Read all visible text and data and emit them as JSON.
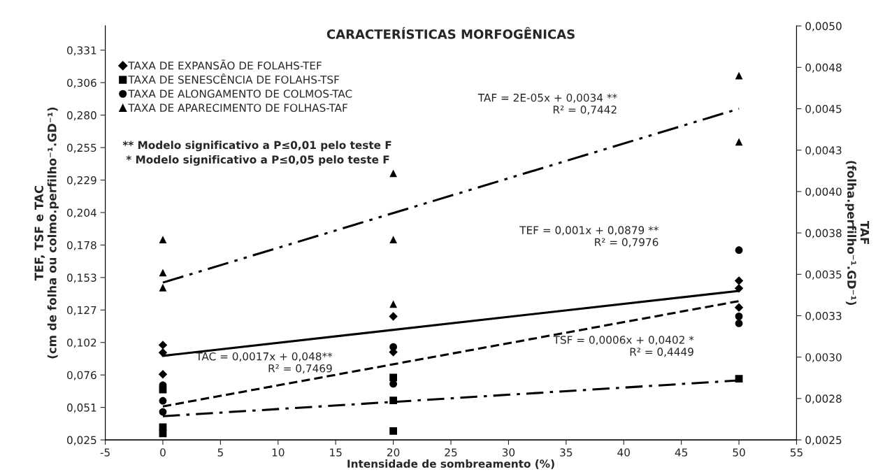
{
  "chart_data": {
    "type": "scatter",
    "title": "CARACTERÍSTICAS MORFOGÊNICAS",
    "xlabel": "Intensidade de sombreamento (%)",
    "ylabel": "TEF, TSF e TAC\n(cm de folha ou colmo.perfilho⁻¹.GD⁻¹)",
    "y2label": "TAF\n(folha.perfilho⁻¹.GD⁻¹)",
    "xlim": [
      -5,
      55
    ],
    "xticks": [
      -5,
      0,
      5,
      10,
      15,
      20,
      25,
      30,
      35,
      40,
      45,
      50,
      55
    ],
    "ylim": [
      0.025,
      0.35
    ],
    "yticks": [
      {
        "value": 0.025,
        "label": "0,025"
      },
      {
        "value": 0.0505,
        "label": "0,051"
      },
      {
        "value": 0.076,
        "label": "0,076"
      },
      {
        "value": 0.1015,
        "label": "0,102"
      },
      {
        "value": 0.127,
        "label": "0,127"
      },
      {
        "value": 0.1525,
        "label": "0,153"
      },
      {
        "value": 0.178,
        "label": "0,178"
      },
      {
        "value": 0.2035,
        "label": "0,204"
      },
      {
        "value": 0.229,
        "label": "0,229"
      },
      {
        "value": 0.2545,
        "label": "0,255"
      },
      {
        "value": 0.28,
        "label": "0,280"
      },
      {
        "value": 0.3055,
        "label": "0,306"
      },
      {
        "value": 0.331,
        "label": "0,331"
      }
    ],
    "y2lim": [
      0.0025,
      0.005
    ],
    "y2ticks": [
      {
        "value": 0.0025,
        "label": "0,0025"
      },
      {
        "value": 0.00275,
        "label": "0,0028"
      },
      {
        "value": 0.003,
        "label": "0,0030"
      },
      {
        "value": 0.00325,
        "label": "0,0033"
      },
      {
        "value": 0.0035,
        "label": "0,0035"
      },
      {
        "value": 0.00375,
        "label": "0,0038"
      },
      {
        "value": 0.004,
        "label": "0,0040"
      },
      {
        "value": 0.00425,
        "label": "0,0043"
      },
      {
        "value": 0.0045,
        "label": "0,0045"
      },
      {
        "value": 0.00475,
        "label": "0,0048"
      },
      {
        "value": 0.005,
        "label": "0,0050"
      }
    ],
    "grid": false,
    "legend": "top left",
    "series": [
      {
        "name": "TAXA DE EXPANSÃO DE FOLAHS-TEF",
        "marker": "diamond",
        "color": "#000000",
        "x": [
          0,
          0,
          0,
          20,
          20,
          50,
          50,
          50
        ],
        "values": [
          0.0995,
          0.0935,
          0.0765,
          0.122,
          0.094,
          0.15,
          0.144,
          0.129
        ]
      },
      {
        "name": "TAXA DE SENESCÊNCIA DE FOLAHS-TSF",
        "marker": "square",
        "color": "#000000",
        "x": [
          0,
          0,
          0,
          20,
          20,
          20,
          50
        ],
        "values": [
          0.0645,
          0.035,
          0.03,
          0.074,
          0.056,
          0.032,
          0.073
        ]
      },
      {
        "name": "TAXA DE ALONGAMENTO DE COLMOS-TAC",
        "marker": "circle",
        "color": "#000000",
        "x": [
          0,
          0,
          0,
          20,
          20,
          50,
          50,
          50
        ],
        "values": [
          0.068,
          0.0557,
          0.047,
          0.098,
          0.069,
          0.174,
          0.122,
          0.1165
        ]
      },
      {
        "name": "TAXA DE APARECIMENTO DE FOLHAS-TAF",
        "marker": "triangle",
        "color": "#000000",
        "axis": "y2",
        "x": [
          0,
          0,
          0,
          20,
          20,
          20,
          50,
          50
        ],
        "values": [
          0.00371,
          0.00351,
          0.00342,
          0.00411,
          0.00371,
          0.00332,
          0.0047,
          0.0043
        ]
      },
      {
        "type": "line",
        "line_style": "solid",
        "color": "#000000",
        "x": [
          0,
          50
        ],
        "values": [
          0.091,
          0.142
        ]
      },
      {
        "type": "line",
        "line_style": "dashdot",
        "color": "#000000",
        "x": [
          0,
          50
        ],
        "values": [
          0.0436,
          0.0717
        ]
      },
      {
        "type": "line",
        "line_style": "dashed",
        "color": "#000000",
        "x": [
          0,
          50
        ],
        "values": [
          0.0513,
          0.134
        ]
      },
      {
        "type": "line",
        "line_style": "dashdotdot",
        "color": "#000000",
        "axis": "y2",
        "x": [
          0,
          50
        ],
        "values": [
          0.00345,
          0.0045
        ]
      }
    ],
    "annotations": [
      "** Modelo significativo a P≤0,01 pelo teste F",
      "* Modelo significativo a P≤0,05 pelo teste F",
      "TAF = 2E-05x + 0,0034 **\nR² = 0,7442",
      "TEF = 0,001x + 0,0879 **\nR² = 0,7976",
      "TAC = 0,0017x + 0,048**\nR² = 0,7469",
      "TSF = 0,0006x + 0,0402 *\nR² = 0,4449"
    ]
  }
}
